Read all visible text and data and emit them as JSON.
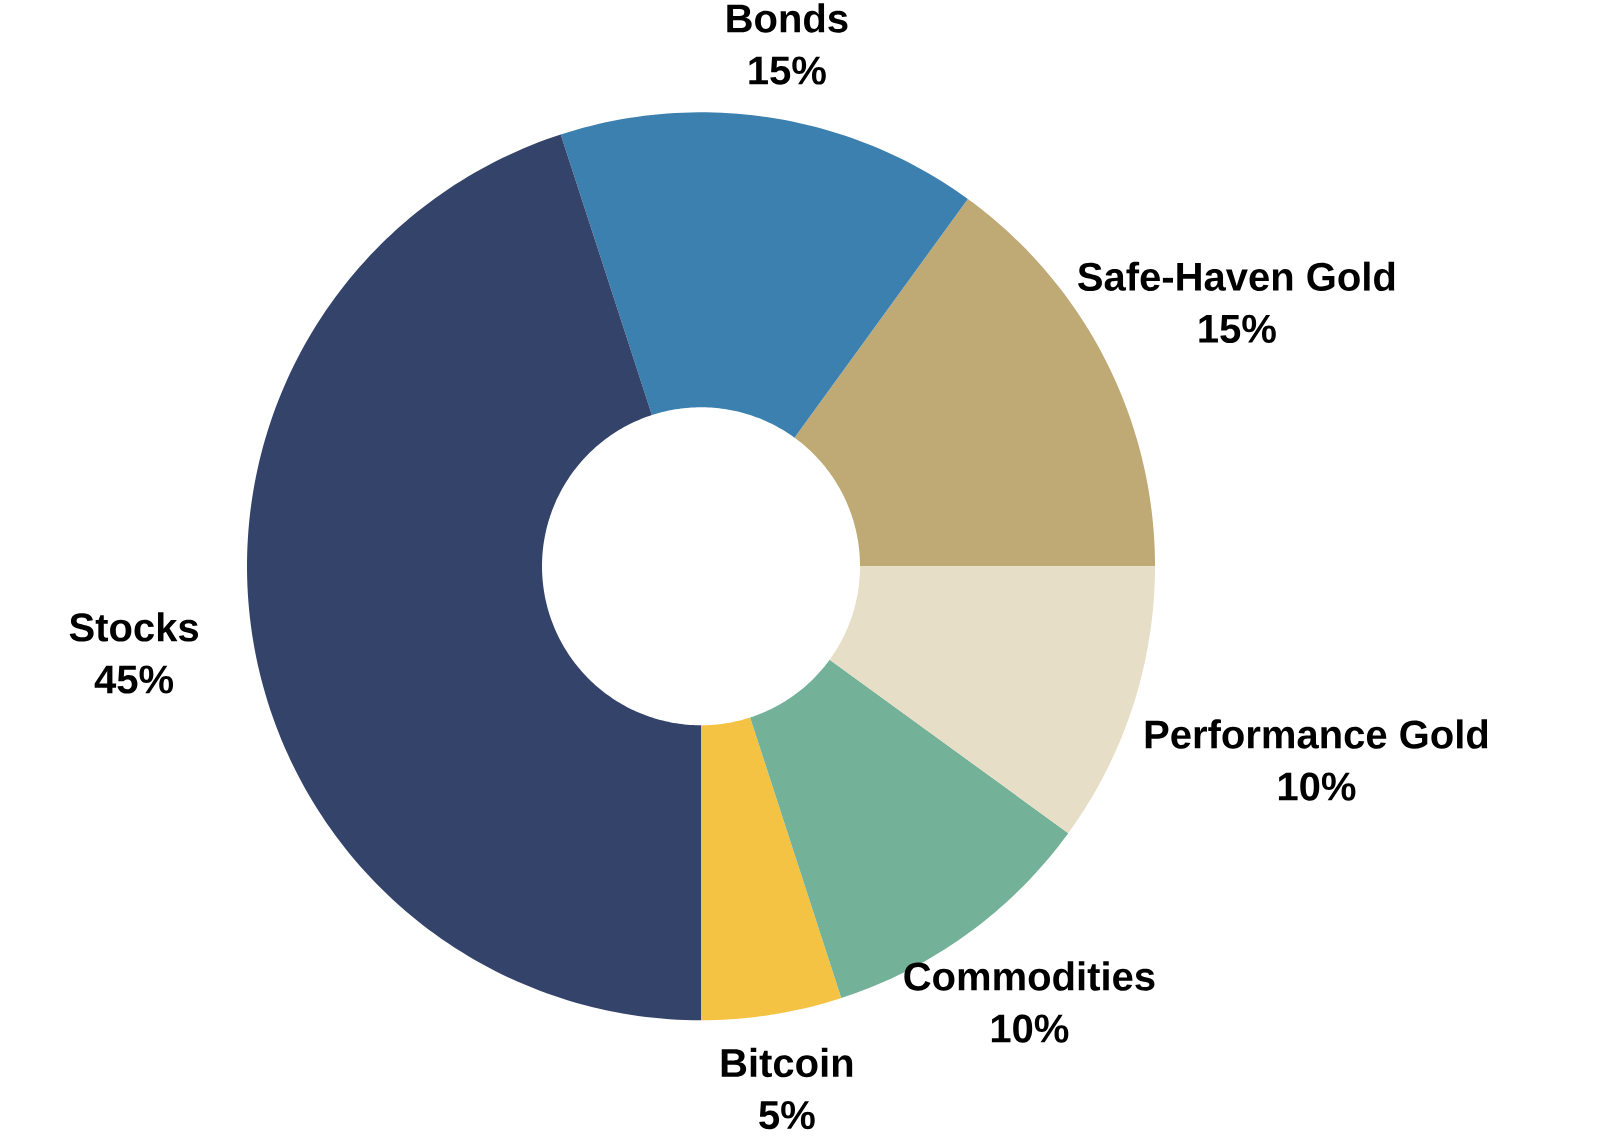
{
  "chart_data": {
    "type": "donut",
    "categories": [
      "Safe-Haven Gold",
      "Bonds",
      "Stocks",
      "Bitcoin",
      "Commodities",
      "Performance Gold"
    ],
    "values": [
      15,
      15,
      45,
      5,
      10,
      10
    ],
    "value_labels": [
      "15%",
      "15%",
      "45%",
      "5%",
      "10%",
      "10%"
    ],
    "colors": [
      "#bfaa75",
      "#3c80b0",
      "#34436a",
      "#f5c344",
      "#73b198",
      "#e6dec6"
    ]
  }
}
